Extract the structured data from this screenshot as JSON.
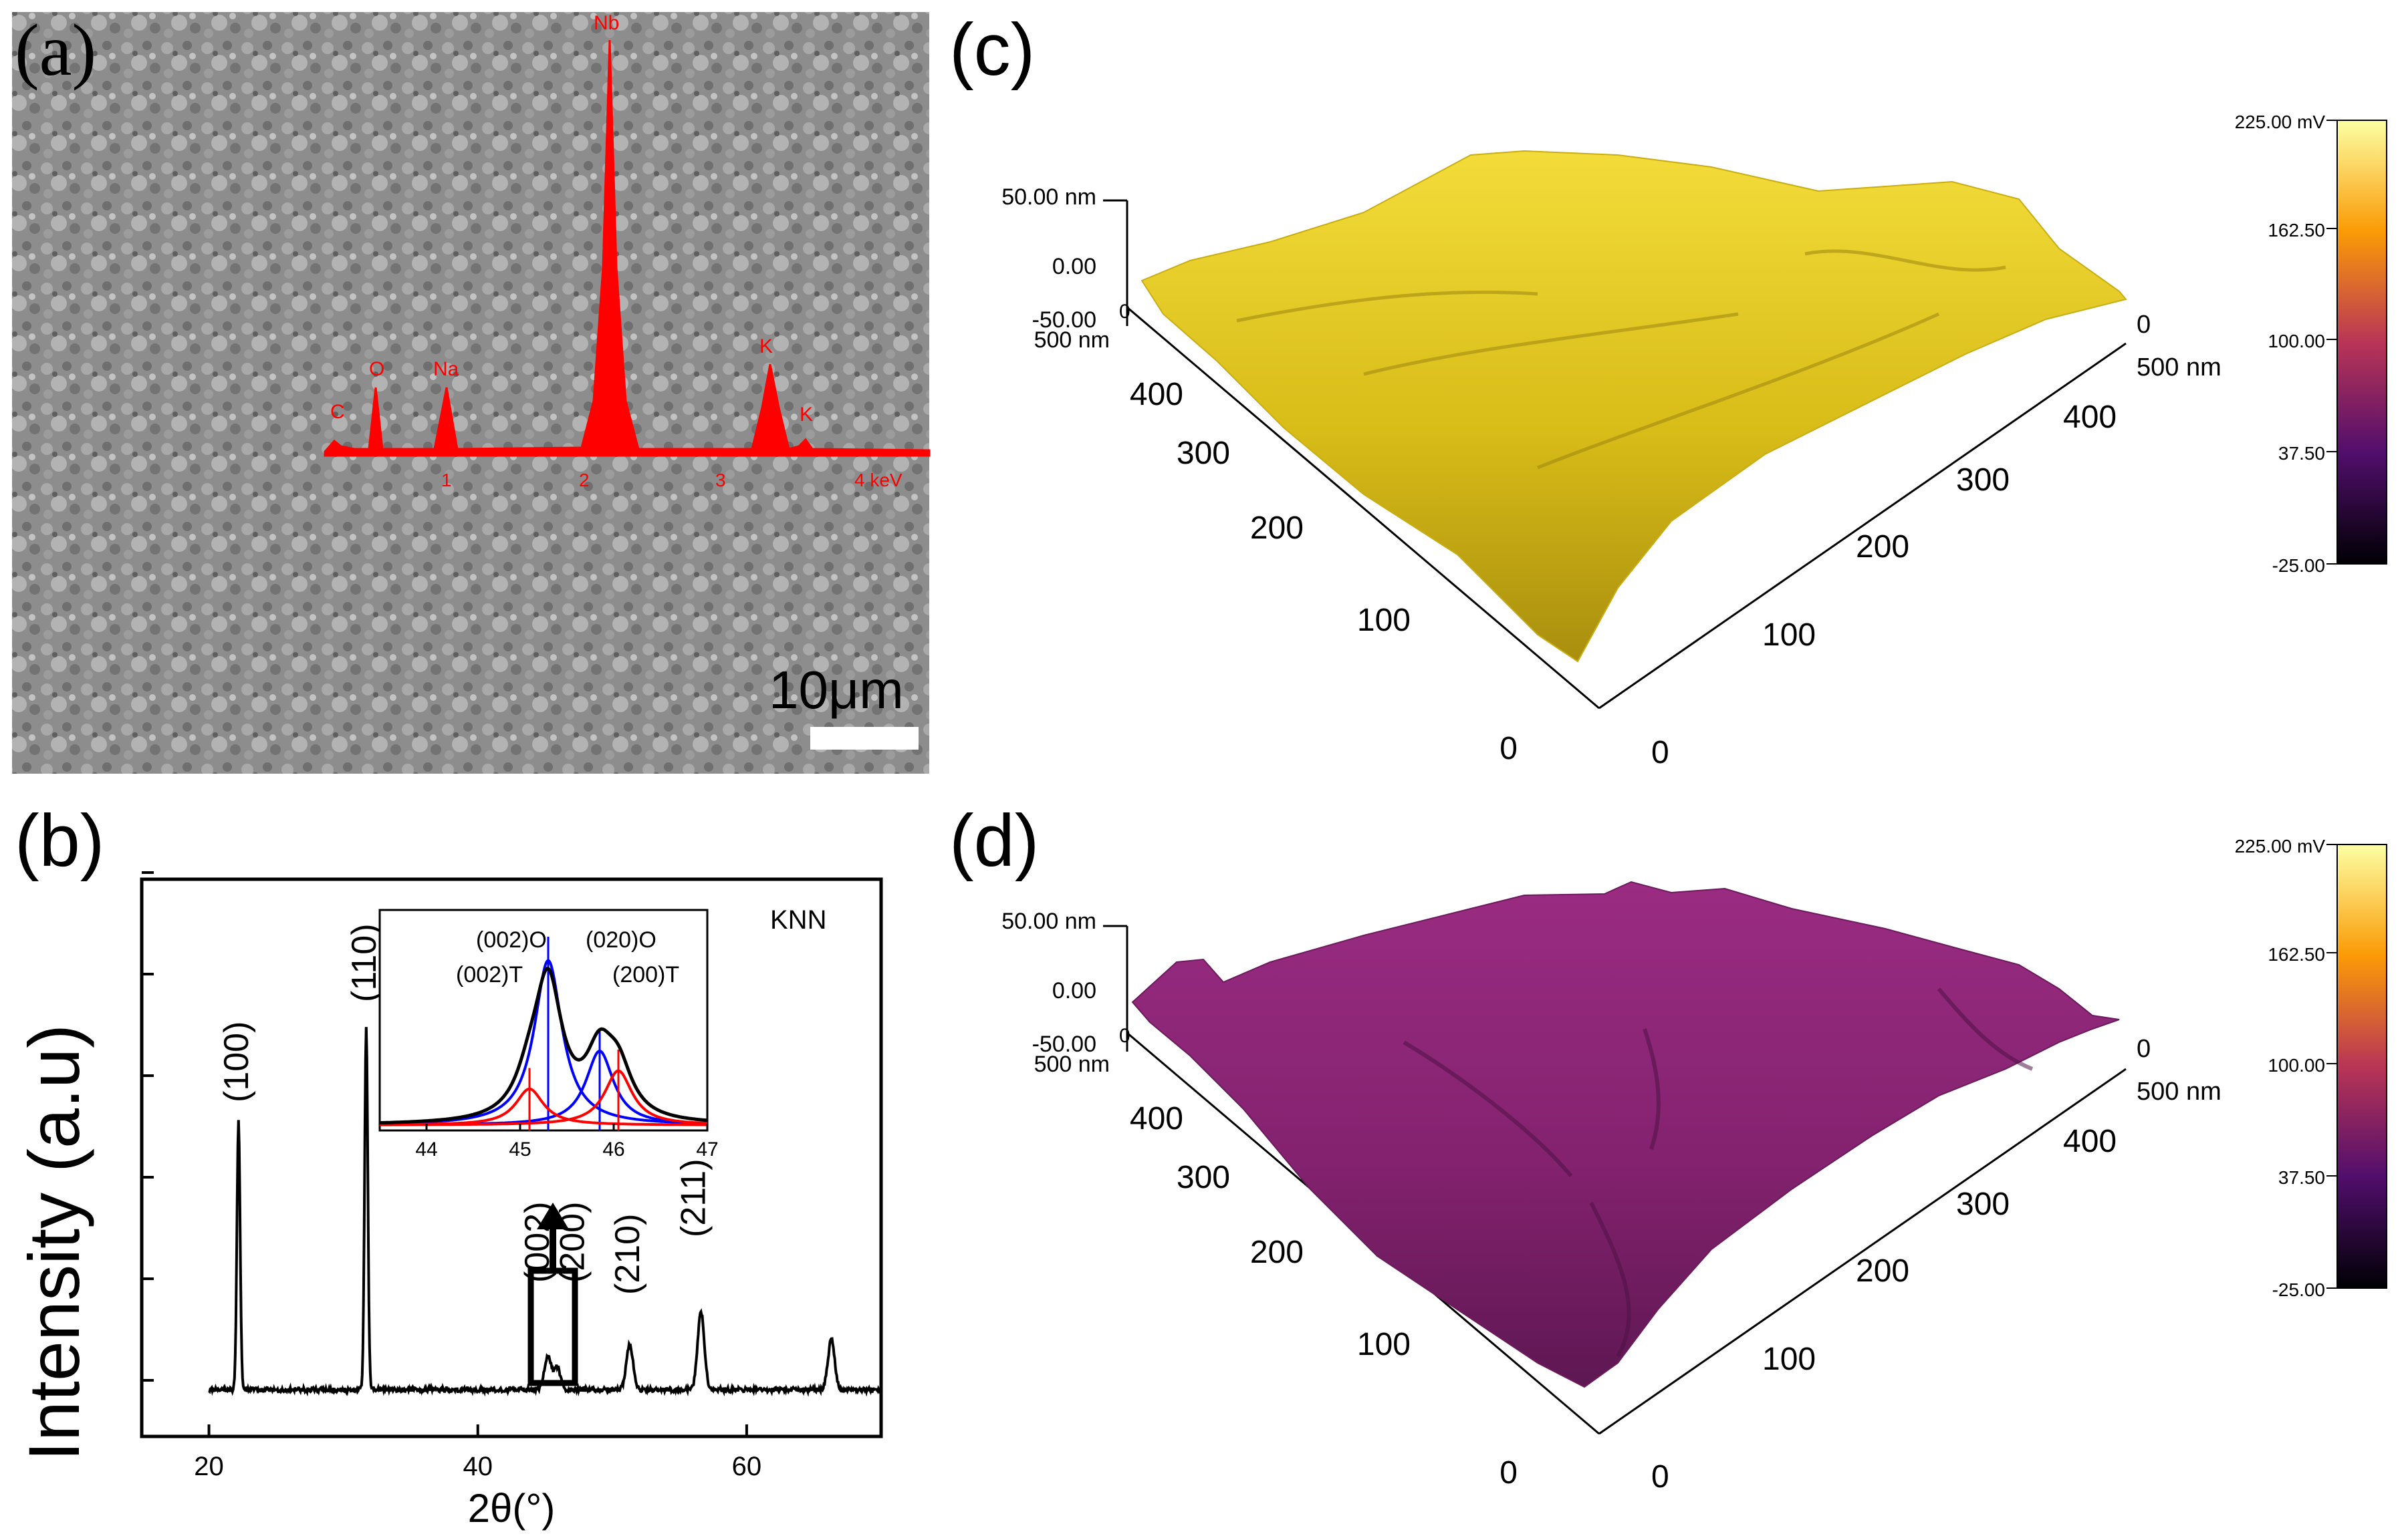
{
  "panels": {
    "a": {
      "label": "(a)",
      "scale_bar": "10μm",
      "eds": {
        "element_labels": [
          "C",
          "O",
          "Na",
          "Nb",
          "K",
          "K"
        ],
        "axis_ticks": [
          "1",
          "2",
          "3",
          "4 keV"
        ]
      }
    },
    "b": {
      "label": "(b)",
      "ylabel": "Intensity (a.u)",
      "xlabel": "2θ(°)",
      "sample": "KNN",
      "peak_labels": [
        "(100)",
        "(110)",
        "(002)",
        "(200)",
        "(210)",
        "(211)"
      ],
      "inset_peak_labels": [
        "(002)O",
        "(020)O",
        "(002)T",
        "(200)T"
      ]
    },
    "c": {
      "label": "(c)",
      "z_ticks": [
        "50.00 nm",
        "0.00",
        "-50.00"
      ],
      "colorbar_ticks": [
        "225.00 mV",
        "162.50",
        "100.00",
        "37.50",
        "-25.00"
      ],
      "colors": {
        "surface": "#e2c61c",
        "surface_dark": "#b99d10"
      }
    },
    "d": {
      "label": "(d)",
      "z_ticks": [
        "50.00 nm",
        "0.00",
        "-50.00"
      ],
      "colorbar_ticks": [
        "225.00 mV",
        "162.50",
        "100.00",
        "37.50",
        "-25.00"
      ],
      "colors": {
        "surface": "#8e2778",
        "surface_dark": "#5c1650"
      }
    },
    "afm_axes": {
      "left_ticks": [
        "500 nm",
        "400",
        "300",
        "200",
        "100",
        "0"
      ],
      "right_ticks": [
        "0",
        "500 nm",
        "400",
        "300",
        "200",
        "100",
        "0"
      ],
      "corner_zero": "0"
    }
  },
  "chart_data": [
    {
      "type": "line",
      "title": "",
      "sample": "KNN",
      "xlabel": "2θ(°)",
      "ylabel": "Intensity (a.u)",
      "xlim": [
        15,
        70
      ],
      "ylim": [
        0,
        100
      ],
      "x_ticks": [
        20,
        40,
        60
      ],
      "baseline": 8,
      "peaks": [
        {
          "label": "(100)",
          "x": 22.2,
          "height": 48
        },
        {
          "label": "(110)",
          "x": 31.7,
          "height": 65
        },
        {
          "label": "(002)",
          "x": 45.2,
          "height": 6
        },
        {
          "label": "(200)",
          "x": 45.9,
          "height": 4
        },
        {
          "label": "(210)",
          "x": 51.3,
          "height": 8
        },
        {
          "label": "(211)",
          "x": 56.6,
          "height": 14
        },
        {
          "label": "",
          "x": 66.3,
          "height": 9
        }
      ]
    },
    {
      "type": "line",
      "title": "inset",
      "xlim": [
        43.5,
        47
      ],
      "x_ticks": [
        44,
        45,
        46,
        47
      ],
      "series": [
        {
          "name": "(002)O",
          "color": "#0000ff",
          "center": 45.3,
          "height": 100
        },
        {
          "name": "(020)O",
          "color": "#0000ff",
          "center": 45.85,
          "height": 45
        },
        {
          "name": "(002)T",
          "color": "#ff0000",
          "center": 45.1,
          "height": 22
        },
        {
          "name": "(200)T",
          "color": "#ff0000",
          "center": 46.05,
          "height": 33
        }
      ]
    }
  ]
}
